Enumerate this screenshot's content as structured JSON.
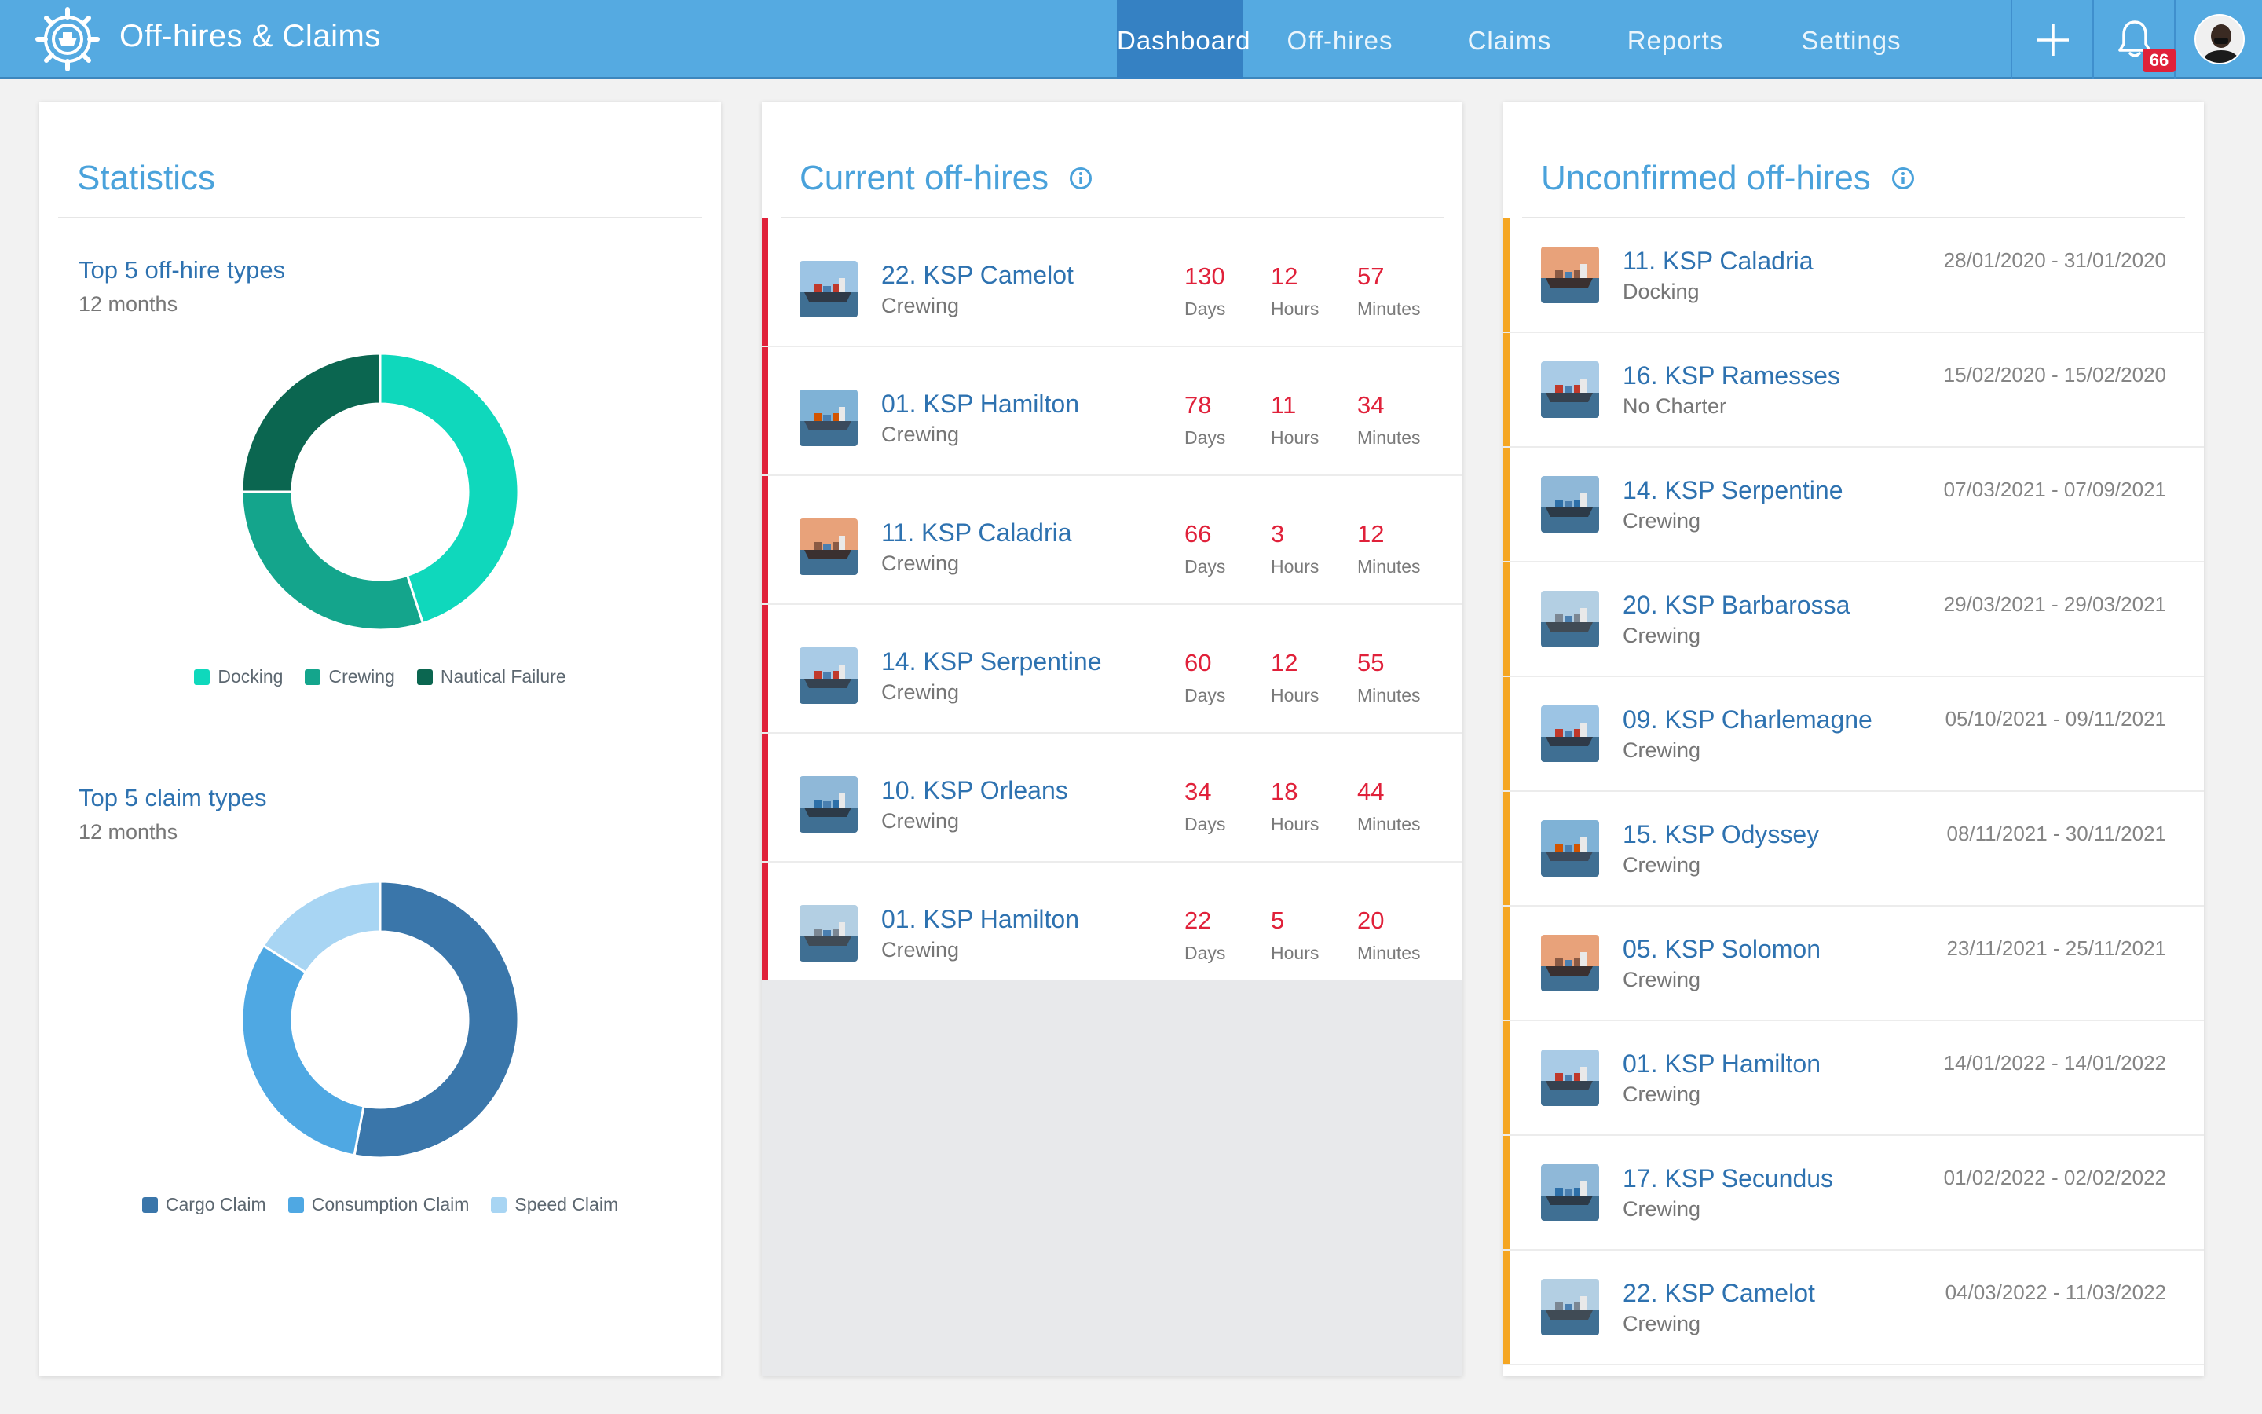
{
  "header": {
    "app_title": "Off-hires & Claims",
    "nav": [
      {
        "label": "Dashboard",
        "active": true
      },
      {
        "label": "Off-hires",
        "active": false
      },
      {
        "label": "Claims",
        "active": false
      },
      {
        "label": "Reports",
        "active": false
      },
      {
        "label": "Settings",
        "active": false
      }
    ],
    "notification_count": "66"
  },
  "statistics": {
    "title": "Statistics",
    "offhire_types": {
      "title": "Top 5 off-hire types",
      "period": "12 months",
      "slices": [
        {
          "label": "Docking",
          "value": 45,
          "color": "#0fd8bc"
        },
        {
          "label": "Crewing",
          "value": 30,
          "color": "#14a58c"
        },
        {
          "label": "Nautical Failure",
          "value": 25,
          "color": "#0b6650"
        }
      ]
    },
    "claim_types": {
      "title": "Top 5 claim types",
      "period": "12 months",
      "slices": [
        {
          "label": "Cargo Claim",
          "value": 53,
          "color": "#3a76aa"
        },
        {
          "label": "Consumption Claim",
          "value": 31,
          "color": "#4fa8e3"
        },
        {
          "label": "Speed Claim",
          "value": 16,
          "color": "#a8d5f3"
        }
      ]
    }
  },
  "current_offhires": {
    "title": "Current off-hires",
    "counter_labels": {
      "days": "Days",
      "hours": "Hours",
      "minutes": "Minutes"
    },
    "items": [
      {
        "name": "22. KSP Camelot",
        "type": "Crewing",
        "days": "130",
        "hours": "12",
        "minutes": "57"
      },
      {
        "name": "01. KSP Hamilton",
        "type": "Crewing",
        "days": "78",
        "hours": "11",
        "minutes": "34"
      },
      {
        "name": "11. KSP Caladria",
        "type": "Crewing",
        "days": "66",
        "hours": "3",
        "minutes": "12"
      },
      {
        "name": "14. KSP Serpentine",
        "type": "Crewing",
        "days": "60",
        "hours": "12",
        "minutes": "55"
      },
      {
        "name": "10. KSP Orleans",
        "type": "Crewing",
        "days": "34",
        "hours": "18",
        "minutes": "44"
      },
      {
        "name": "01. KSP Hamilton",
        "type": "Crewing",
        "days": "22",
        "hours": "5",
        "minutes": "20"
      }
    ]
  },
  "unconfirmed_offhires": {
    "title": "Unconfirmed off-hires",
    "items": [
      {
        "name": "11. KSP Caladria",
        "type": "Docking",
        "dates": "28/01/2020 - 31/01/2020"
      },
      {
        "name": "16. KSP Ramesses",
        "type": "No Charter",
        "dates": "15/02/2020 - 15/02/2020"
      },
      {
        "name": "14. KSP Serpentine",
        "type": "Crewing",
        "dates": "07/03/2021 - 07/09/2021"
      },
      {
        "name": "20. KSP Barbarossa",
        "type": "Crewing",
        "dates": "29/03/2021 - 29/03/2021"
      },
      {
        "name": "09. KSP Charlemagne",
        "type": "Crewing",
        "dates": "05/10/2021 - 09/11/2021"
      },
      {
        "name": "15. KSP Odyssey",
        "type": "Crewing",
        "dates": "08/11/2021 - 30/11/2021"
      },
      {
        "name": "05. KSP Solomon",
        "type": "Crewing",
        "dates": "23/11/2021 - 25/11/2021"
      },
      {
        "name": "01. KSP Hamilton",
        "type": "Crewing",
        "dates": "14/01/2022 - 14/01/2022"
      },
      {
        "name": "17. KSP Secundus",
        "type": "Crewing",
        "dates": "01/02/2022 - 02/02/2022"
      },
      {
        "name": "22. KSP Camelot",
        "type": "Crewing",
        "dates": "04/03/2022 - 11/03/2022"
      }
    ]
  },
  "colors": {
    "brand": "#55aae1",
    "nav_active": "#3581c3",
    "current_accent": "#e0213a",
    "unconfirmed_accent": "#f5a623",
    "link": "#2e72b0"
  }
}
